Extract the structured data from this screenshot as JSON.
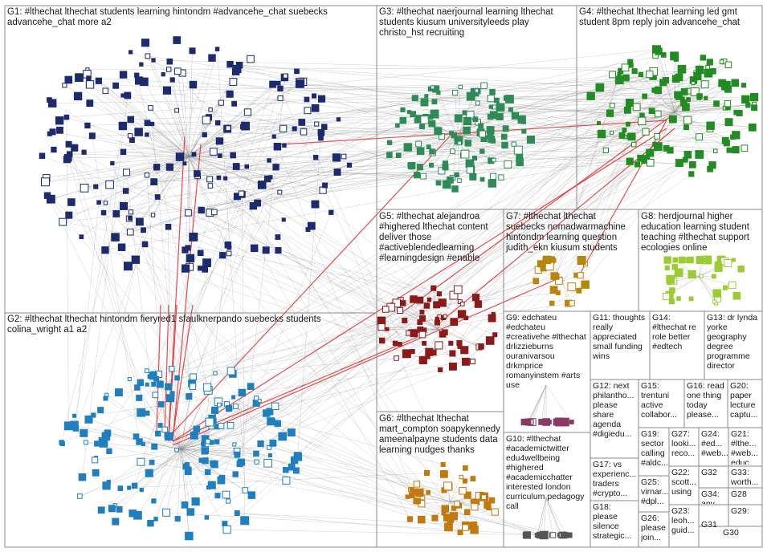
{
  "title": "",
  "groups": [
    {
      "id": "g1",
      "label": "G1: #lthechat lthechat students learning hintondm #advancehe_chat suebecks advancehe_chat more a2",
      "color": "#1c2a6e"
    },
    {
      "id": "g2",
      "label": "G2: #lthechat lthechat hintondm fieryred1 sfaulknerpando suebecks students colina_wright a1 a2",
      "color": "#1f7fbf"
    },
    {
      "id": "g3",
      "label": "G3: #lthechat naerjournal learning lthechat students kiusum universityleeds play christo_hst recruiting",
      "color": "#2e8b57"
    },
    {
      "id": "g4",
      "label": "G4: #lthechat lthechat learning led gmt student 8pm reply join advancehe_chat",
      "color": "#228b22"
    },
    {
      "id": "g5",
      "label": "G5: #lthechat alejandroa #highered lthechat content deliver those #activeblendedlearning #learningdesign #enable",
      "color": "#8b1a1a"
    },
    {
      "id": "g6",
      "label": "G6: #lthechat lthechat mart_compton soapykennedy ameenalpayne students data learning nudges thanks",
      "color": "#c07a10"
    },
    {
      "id": "g7",
      "label": "G7: #lthechat lthechat suebecks nomadwarmachine hintondm learning question judith_ekn kiusum students",
      "color": "#b8860b"
    },
    {
      "id": "g8",
      "label": "G8: herdjournal higher education learning student teaching #lthechat support ecologies online",
      "color": "#9acd32"
    },
    {
      "id": "g9",
      "label": "G9: edchateu #edchateu #creativehe #lthechat drlizzieburns ouranivarsou drkmprice romanyinstem #arts use",
      "color": "#8b3a62"
    },
    {
      "id": "g10",
      "label": "G10: #lthechat #academictwitter edu4wellbeing #highered #academicchatter interested london curriculum pedagogy call",
      "color": "#555555"
    },
    {
      "id": "g11",
      "label": "G11: thoughts really appreciated small funding wins",
      "color": "#777777"
    },
    {
      "id": "g12",
      "label": "G12: next philantho... please share agenda #digiedu...",
      "color": "#777777"
    },
    {
      "id": "g13",
      "label": "G13: dr lynda yorke geography degree programme director",
      "color": "#777777"
    },
    {
      "id": "g14",
      "label": "G14: #lthechat re role better #edtech",
      "color": "#777777"
    },
    {
      "id": "g15",
      "label": "G15: trentuni active collabor...",
      "color": "#777777"
    },
    {
      "id": "g16",
      "label": "G16: read one thing today please...",
      "color": "#777777"
    },
    {
      "id": "g17",
      "label": "G17: vs experienc... traders #crypto...",
      "color": "#777777"
    },
    {
      "id": "g18",
      "label": "G18: please silence strategic...",
      "color": "#777777"
    },
    {
      "id": "g19",
      "label": "G19: sector calling #aldc...",
      "color": "#777777"
    },
    {
      "id": "g20",
      "label": "G20: paper lecture captu...",
      "color": "#777777"
    },
    {
      "id": "g21",
      "label": "G21: #lthe... #web... educ...",
      "color": "#777777"
    },
    {
      "id": "g22",
      "label": "G22: scott... using",
      "color": "#777777"
    },
    {
      "id": "g23",
      "label": "G23: leoh... guid...",
      "color": "#777777"
    },
    {
      "id": "g24",
      "label": "G24: #ed... #web...",
      "color": "#777777"
    },
    {
      "id": "g25",
      "label": "G25: virnar... #dpl...",
      "color": "#777777"
    },
    {
      "id": "g26",
      "label": "G26: please join...",
      "color": "#777777"
    },
    {
      "id": "g27",
      "label": "G27: looki... reco...",
      "color": "#777777"
    },
    {
      "id": "g28",
      "label": "G28",
      "color": "#777777"
    },
    {
      "id": "g29",
      "label": "G29:",
      "color": "#777777"
    },
    {
      "id": "g30",
      "label": "G30",
      "color": "#777777"
    },
    {
      "id": "g31",
      "label": "G31",
      "color": "#777777"
    },
    {
      "id": "g32",
      "label": "G32",
      "color": "#777777"
    },
    {
      "id": "g33",
      "label": "G33: worth...",
      "color": "#777777"
    },
    {
      "id": "g34",
      "label": "G34: any...",
      "color": "#777777"
    }
  ],
  "node_counts": {
    "g1": 210,
    "g2": 170,
    "g3": 120,
    "g4": 130,
    "g5": 70,
    "g6": 55,
    "g7": 25,
    "g8": 40,
    "g9": 20,
    "g10": 18
  },
  "colors": {
    "edge": "#8c8c8c",
    "highlight_edge": "#e02020",
    "box_border": "#8a8a8a",
    "background": "#ffffff"
  }
}
